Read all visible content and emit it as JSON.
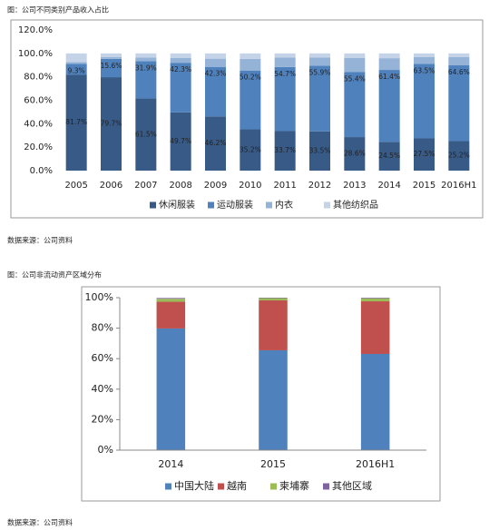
{
  "chart_data": [
    {
      "type": "bar",
      "stacked": true,
      "title": "图：公司不同类别产品收入占比",
      "categories": [
        "2005",
        "2006",
        "2007",
        "2008",
        "2009",
        "2010",
        "2011",
        "2012",
        "2013",
        "2014",
        "2015",
        "2016H1"
      ],
      "series": [
        {
          "name": "休闲服装",
          "color": "#375a86",
          "values": [
            81.7,
            79.7,
            61.5,
            49.7,
            46.2,
            35.2,
            33.7,
            33.5,
            28.6,
            24.5,
            27.5,
            25.2
          ],
          "value_labels": [
            "81.7%",
            "79.7%",
            "61.5%",
            "49.7%",
            "46.2%",
            "35.2%",
            "33.7%",
            "33.5%",
            "28.6%",
            "24.5%",
            "27.5%",
            "25.2%"
          ]
        },
        {
          "name": "运动服装",
          "color": "#4f81bd",
          "values": [
            9.3,
            15.6,
            31.9,
            42.3,
            42.3,
            50.2,
            54.7,
            55.9,
            55.4,
            61.4,
            63.5,
            64.6
          ],
          "value_labels": [
            "9.3%",
            "15.6%",
            "31.9%",
            "42.3%",
            "42.3%",
            "50.2%",
            "54.7%",
            "55.9%",
            "55.4%",
            "61.4%",
            "63.5%",
            "64.6%"
          ]
        },
        {
          "name": "内衣",
          "color": "#95b3d7",
          "values": [
            1.5,
            1.5,
            3,
            4,
            7,
            10,
            8,
            7,
            12,
            10,
            6,
            7
          ]
        },
        {
          "name": "其他纺织品",
          "color": "#c5d3e8",
          "values": [
            7.5,
            3.2,
            3.6,
            4,
            4.5,
            4.6,
            3.6,
            3.6,
            4,
            4.1,
            3,
            3.2
          ]
        }
      ],
      "ylim": [
        0,
        120
      ],
      "yticks": [
        {
          "value": 0,
          "label": "0.0%"
        },
        {
          "value": 20,
          "label": "20.0%"
        },
        {
          "value": 40,
          "label": "40.0%"
        },
        {
          "value": 60,
          "label": "60.0%"
        },
        {
          "value": 80,
          "label": "80.0%"
        },
        {
          "value": 100,
          "label": "100.0%"
        },
        {
          "value": 120,
          "label": "120.0%"
        }
      ],
      "grid": false,
      "source": "数据来源：公司资料"
    },
    {
      "type": "bar",
      "stacked": true,
      "title": "图：公司非流动资产区域分布",
      "categories": [
        "2014",
        "2015",
        "2016H1"
      ],
      "series": [
        {
          "name": "中国大陆",
          "color": "#4f81bd",
          "values": [
            79.8,
            65.5,
            63.1
          ]
        },
        {
          "name": "越南",
          "color": "#c0504d",
          "values": [
            17.5,
            32.7,
            34.5
          ]
        },
        {
          "name": "柬埔寨",
          "color": "#9bbb59",
          "values": [
            2,
            1.5,
            2
          ]
        },
        {
          "name": "其他区域",
          "color": "#8064a2",
          "values": [
            0.5,
            0.3,
            0.4
          ]
        }
      ],
      "ylim": [
        0,
        100
      ],
      "yticks": [
        {
          "value": 0,
          "label": "0%"
        },
        {
          "value": 20,
          "label": "20%"
        },
        {
          "value": 40,
          "label": "40%"
        },
        {
          "value": 60,
          "label": "60%"
        },
        {
          "value": 80,
          "label": "80%"
        },
        {
          "value": 100,
          "label": "100%"
        }
      ],
      "grid": false,
      "source": "数据来源：公司资料"
    }
  ]
}
